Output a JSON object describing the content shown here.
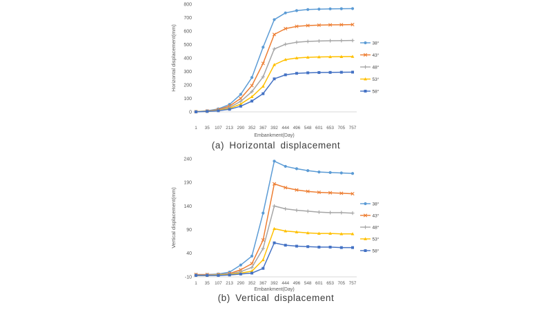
{
  "colors": {
    "series_blue_light": "#5B9BD5",
    "series_orange": "#ED7D31",
    "series_gray": "#A5A5A5",
    "series_yellow": "#FFC000",
    "series_blue_dark": "#4472C4",
    "axis_line": "#D9D9D9",
    "tick_text": "#595959"
  },
  "chart_data": [
    {
      "type": "line",
      "caption": "(a) Horizontal displacement",
      "xlabel": "Embankment(Day)",
      "ylabel": "Horizontal displacement(mm)",
      "ylim": [
        0,
        800
      ],
      "yticks": [
        0,
        100,
        200,
        300,
        400,
        500,
        600,
        700,
        800
      ],
      "categories": [
        1,
        35,
        107,
        213,
        290,
        352,
        367,
        392,
        444,
        496,
        548,
        601,
        653,
        705,
        757
      ],
      "grid": false,
      "legend_position": "right",
      "series": [
        {
          "name": "38°",
          "color": "#5B9BD5",
          "marker": "circle",
          "values": [
            2,
            8,
            22,
            55,
            130,
            255,
            480,
            685,
            735,
            752,
            760,
            763,
            765,
            766,
            767
          ]
        },
        {
          "name": "43°",
          "color": "#ED7D31",
          "marker": "x",
          "values": [
            1,
            6,
            17,
            43,
            100,
            195,
            360,
            575,
            618,
            635,
            641,
            644,
            646,
            647,
            648
          ]
        },
        {
          "name": "48°",
          "color": "#A5A5A5",
          "marker": "plus",
          "values": [
            1,
            5,
            13,
            33,
            78,
            150,
            260,
            467,
            502,
            517,
            523,
            526,
            528,
            529,
            530
          ]
        },
        {
          "name": "53°",
          "color": "#FFC000",
          "marker": "triangle",
          "values": [
            1,
            4,
            10,
            25,
            58,
            112,
            190,
            350,
            388,
            400,
            405,
            408,
            409,
            410,
            411
          ]
        },
        {
          "name": "58°",
          "color": "#4472C4",
          "marker": "square",
          "values": [
            0,
            3,
            8,
            19,
            42,
            80,
            135,
            245,
            275,
            286,
            290,
            292,
            293,
            294,
            295
          ]
        }
      ]
    },
    {
      "type": "line",
      "caption": "(b) Vertical displacement",
      "xlabel": "Embankment(Day)",
      "ylabel": "Vertical displacement(mm)",
      "ylim": [
        -10,
        240
      ],
      "yticks": [
        -10,
        40,
        90,
        140,
        190,
        240
      ],
      "categories": [
        1,
        35,
        107,
        213,
        290,
        352,
        367,
        392,
        444,
        496,
        548,
        601,
        653,
        705,
        757
      ],
      "grid": false,
      "legend_position": "right",
      "series": [
        {
          "name": "38°",
          "color": "#5B9BD5",
          "marker": "circle",
          "values": [
            -5,
            -5,
            -4,
            0,
            15,
            34,
            125,
            235,
            224,
            219,
            215,
            212,
            211,
            210,
            209
          ]
        },
        {
          "name": "43°",
          "color": "#ED7D31",
          "marker": "x",
          "values": [
            -5,
            -5,
            -5,
            -3,
            5,
            18,
            68,
            187,
            179,
            174,
            171,
            169,
            168,
            167,
            166
          ]
        },
        {
          "name": "48°",
          "color": "#A5A5A5",
          "marker": "plus",
          "values": [
            -6,
            -6,
            -5,
            -4,
            1,
            10,
            50,
            140,
            134,
            131,
            129,
            127,
            126,
            126,
            125
          ]
        },
        {
          "name": "53°",
          "color": "#FFC000",
          "marker": "triangle",
          "values": [
            -7,
            -7,
            -6,
            -5,
            -2,
            2,
            26,
            92,
            87,
            85,
            83,
            82,
            82,
            81,
            81
          ]
        },
        {
          "name": "58°",
          "color": "#4472C4",
          "marker": "square",
          "values": [
            -7,
            -7,
            -7,
            -6,
            -4,
            -2,
            8,
            62,
            57,
            55,
            54,
            53,
            53,
            52,
            52
          ]
        }
      ]
    }
  ]
}
